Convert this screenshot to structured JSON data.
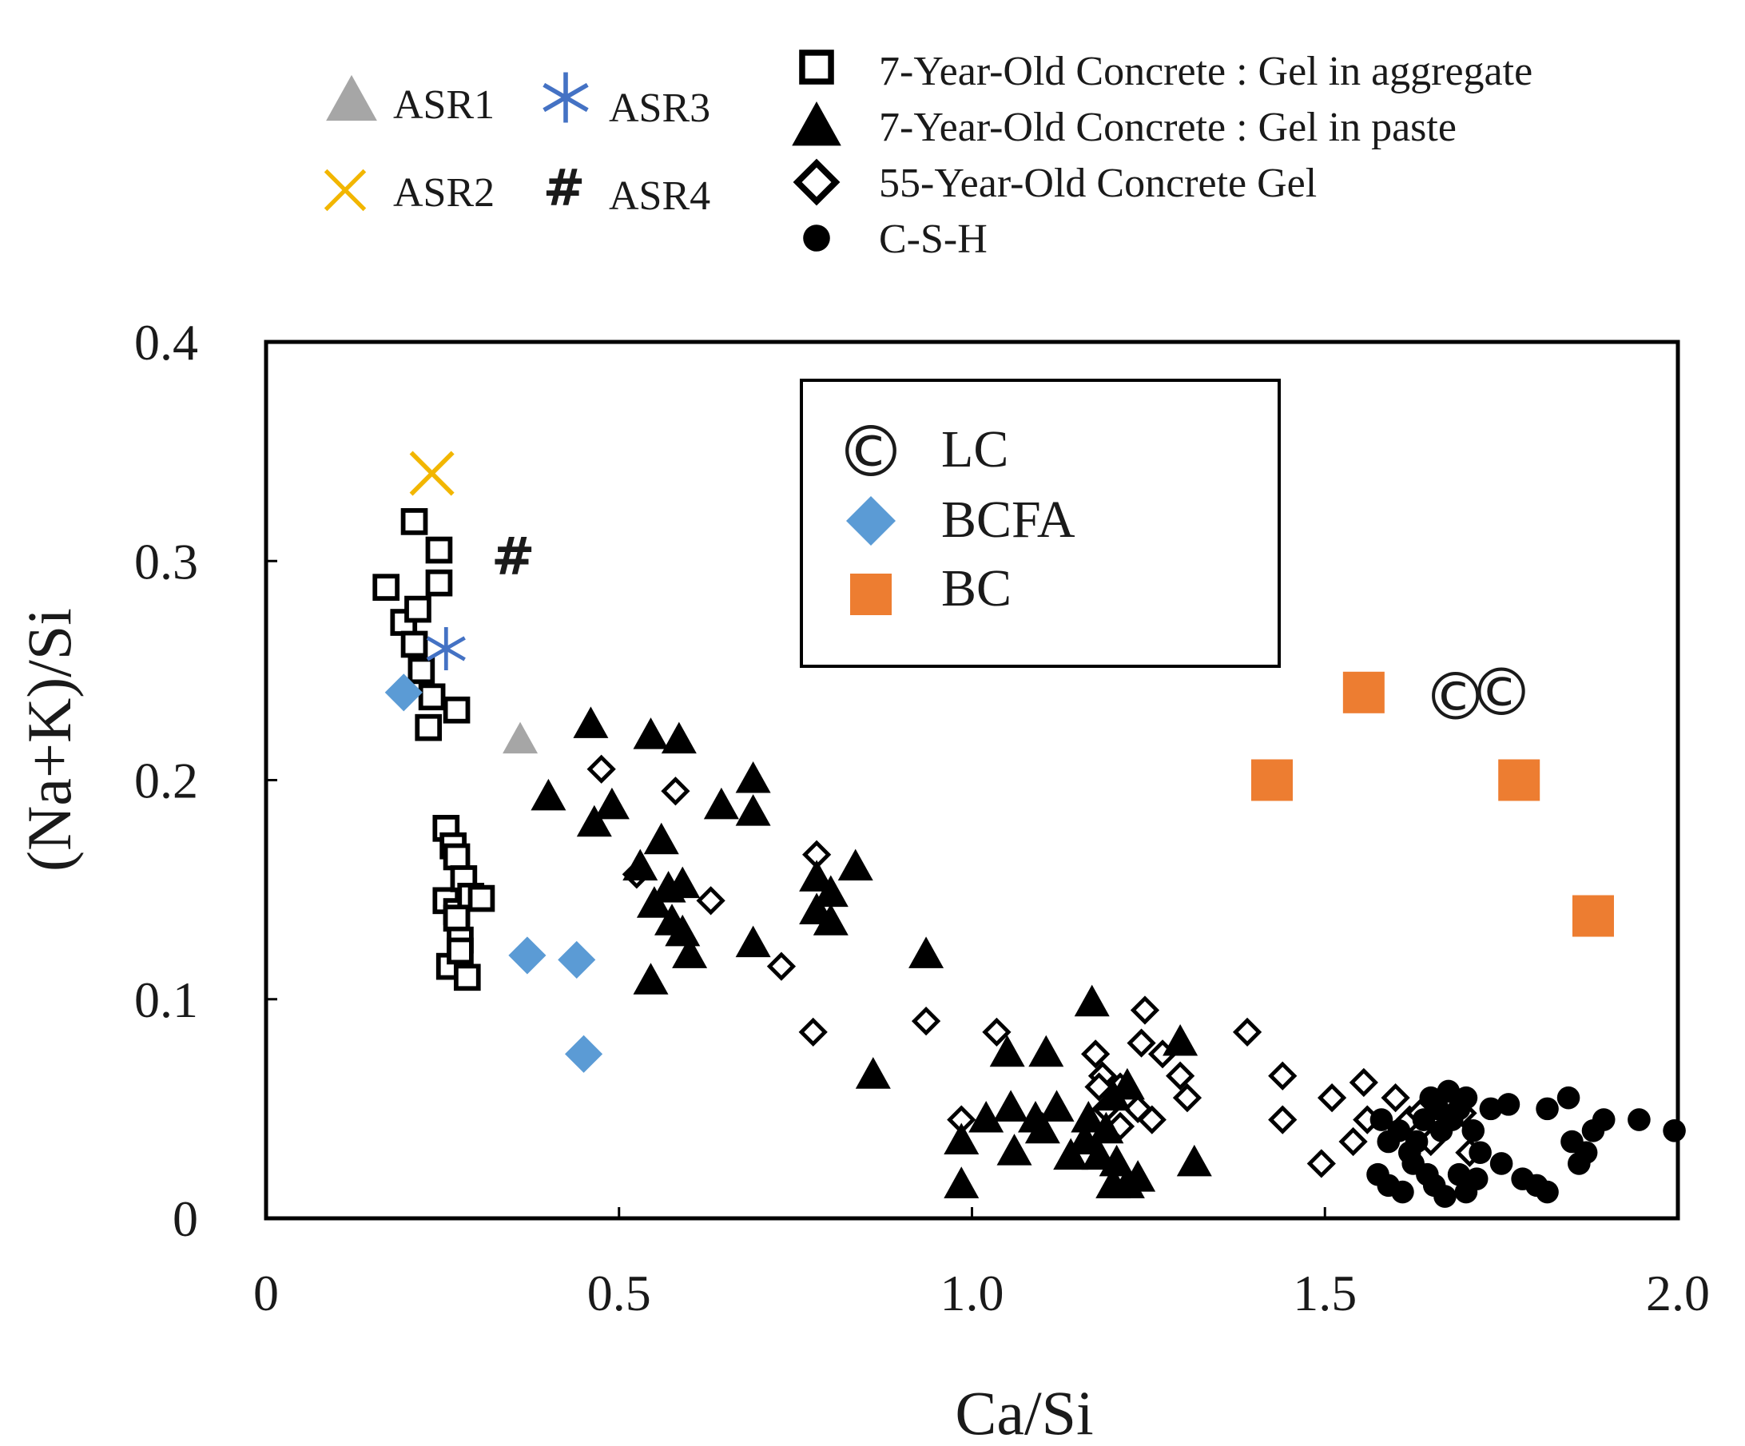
{
  "chart_data": {
    "type": "scatter",
    "xlabel": "Ca/Si",
    "ylabel": "(Na+K)/Si",
    "xlim": [
      0,
      2.0
    ],
    "ylim": [
      0,
      0.4
    ],
    "x_ticks": [
      0,
      0.5,
      1.0,
      1.5,
      2.0
    ],
    "x_tick_labels": [
      "0",
      "0.5",
      "1.0",
      "1.5",
      "2.0"
    ],
    "y_ticks": [
      0,
      0.1,
      0.2,
      0.3,
      0.4
    ],
    "y_tick_labels": [
      "0",
      "0.1",
      "0.2",
      "0.3",
      "0.4"
    ],
    "grid": false,
    "legend_outer_placement": "top",
    "legend_inner_placement": "upper-center",
    "series": [
      {
        "name": "ASR1",
        "legend": "outer",
        "marker": "triangle",
        "color": "#a6a6a6",
        "points": [
          [
            0.36,
            0.218
          ]
        ]
      },
      {
        "name": "ASR2",
        "legend": "outer",
        "marker": "x",
        "color": "#f2b600",
        "points": [
          [
            0.235,
            0.34
          ]
        ]
      },
      {
        "name": "ASR3",
        "legend": "outer",
        "marker": "asterisk",
        "color": "#4472c4",
        "points": [
          [
            0.255,
            0.26
          ]
        ]
      },
      {
        "name": "ASR4",
        "legend": "outer",
        "marker": "hash",
        "color": "#000000",
        "points": [
          [
            0.35,
            0.302
          ]
        ]
      },
      {
        "name": "7-Year-Old Concrete : Gel in aggregate",
        "legend": "outer",
        "marker": "open-square-bold",
        "color": "#000000",
        "points": [
          [
            0.17,
            0.288
          ],
          [
            0.195,
            0.272
          ],
          [
            0.215,
            0.278
          ],
          [
            0.21,
            0.318
          ],
          [
            0.245,
            0.305
          ],
          [
            0.245,
            0.29
          ],
          [
            0.21,
            0.262
          ],
          [
            0.22,
            0.25
          ],
          [
            0.235,
            0.238
          ],
          [
            0.27,
            0.232
          ],
          [
            0.23,
            0.224
          ],
          [
            0.255,
            0.178
          ],
          [
            0.265,
            0.17
          ],
          [
            0.27,
            0.165
          ],
          [
            0.255,
            0.145
          ],
          [
            0.27,
            0.14
          ],
          [
            0.28,
            0.155
          ],
          [
            0.29,
            0.147
          ],
          [
            0.305,
            0.146
          ],
          [
            0.27,
            0.137
          ],
          [
            0.275,
            0.127
          ],
          [
            0.26,
            0.115
          ],
          [
            0.285,
            0.11
          ],
          [
            0.275,
            0.122
          ]
        ]
      },
      {
        "name": "7-Year-Old Concrete : Gel in paste",
        "legend": "outer",
        "marker": "triangle",
        "color": "#000000",
        "points": [
          [
            0.46,
            0.225
          ],
          [
            0.545,
            0.22
          ],
          [
            0.585,
            0.218
          ],
          [
            0.69,
            0.2
          ],
          [
            0.4,
            0.192
          ],
          [
            0.49,
            0.188
          ],
          [
            0.645,
            0.188
          ],
          [
            0.69,
            0.185
          ],
          [
            0.465,
            0.18
          ],
          [
            0.56,
            0.172
          ],
          [
            0.53,
            0.16
          ],
          [
            0.57,
            0.15
          ],
          [
            0.59,
            0.152
          ],
          [
            0.55,
            0.143
          ],
          [
            0.575,
            0.135
          ],
          [
            0.59,
            0.13
          ],
          [
            0.6,
            0.12
          ],
          [
            0.545,
            0.108
          ],
          [
            0.69,
            0.125
          ],
          [
            0.78,
            0.155
          ],
          [
            0.8,
            0.148
          ],
          [
            0.835,
            0.16
          ],
          [
            0.78,
            0.14
          ],
          [
            0.8,
            0.135
          ],
          [
            0.935,
            0.12
          ],
          [
            0.86,
            0.065
          ],
          [
            1.17,
            0.098
          ],
          [
            1.05,
            0.075
          ],
          [
            1.105,
            0.075
          ],
          [
            1.295,
            0.08
          ],
          [
            0.985,
            0.035
          ],
          [
            1.02,
            0.045
          ],
          [
            1.055,
            0.05
          ],
          [
            1.09,
            0.045
          ],
          [
            1.12,
            0.05
          ],
          [
            1.1,
            0.04
          ],
          [
            1.165,
            0.045
          ],
          [
            1.16,
            0.035
          ],
          [
            1.19,
            0.04
          ],
          [
            1.06,
            0.03
          ],
          [
            1.14,
            0.028
          ],
          [
            1.18,
            0.028
          ],
          [
            1.205,
            0.025
          ],
          [
            0.985,
            0.015
          ],
          [
            1.2,
            0.015
          ],
          [
            1.22,
            0.015
          ],
          [
            1.235,
            0.018
          ],
          [
            1.315,
            0.025
          ],
          [
            1.2,
            0.055
          ],
          [
            1.22,
            0.06
          ]
        ]
      },
      {
        "name": "55-Year-Old Concrete Gel",
        "legend": "outer",
        "marker": "open-diamond-bold",
        "color": "#000000",
        "points": [
          [
            0.475,
            0.205
          ],
          [
            0.58,
            0.195
          ],
          [
            0.525,
            0.157
          ],
          [
            0.63,
            0.145
          ],
          [
            0.73,
            0.115
          ],
          [
            0.78,
            0.166
          ],
          [
            0.775,
            0.085
          ],
          [
            0.935,
            0.09
          ],
          [
            1.035,
            0.085
          ],
          [
            1.175,
            0.075
          ],
          [
            1.185,
            0.065
          ],
          [
            1.21,
            0.06
          ],
          [
            1.24,
            0.08
          ],
          [
            1.245,
            0.095
          ],
          [
            1.27,
            0.075
          ],
          [
            1.295,
            0.065
          ],
          [
            1.305,
            0.055
          ],
          [
            1.39,
            0.085
          ],
          [
            1.44,
            0.065
          ],
          [
            1.44,
            0.045
          ],
          [
            1.495,
            0.025
          ],
          [
            1.51,
            0.055
          ],
          [
            1.555,
            0.062
          ],
          [
            1.56,
            0.045
          ],
          [
            1.54,
            0.035
          ],
          [
            1.6,
            0.055
          ],
          [
            1.62,
            0.045
          ],
          [
            1.635,
            0.048
          ],
          [
            1.65,
            0.035
          ],
          [
            1.695,
            0.048
          ],
          [
            1.705,
            0.03
          ],
          [
            1.19,
            0.05
          ],
          [
            1.21,
            0.042
          ],
          [
            1.235,
            0.05
          ],
          [
            1.255,
            0.045
          ],
          [
            1.18,
            0.06
          ],
          [
            0.985,
            0.045
          ]
        ]
      },
      {
        "name": "C-S-H",
        "legend": "outer",
        "marker": "circle",
        "color": "#000000",
        "points": [
          [
            1.58,
            0.045
          ],
          [
            1.59,
            0.035
          ],
          [
            1.605,
            0.04
          ],
          [
            1.62,
            0.03
          ],
          [
            1.625,
            0.025
          ],
          [
            1.64,
            0.045
          ],
          [
            1.65,
            0.055
          ],
          [
            1.66,
            0.05
          ],
          [
            1.665,
            0.04
          ],
          [
            1.675,
            0.058
          ],
          [
            1.68,
            0.045
          ],
          [
            1.69,
            0.05
          ],
          [
            1.7,
            0.055
          ],
          [
            1.71,
            0.04
          ],
          [
            1.72,
            0.03
          ],
          [
            1.735,
            0.05
          ],
          [
            1.76,
            0.052
          ],
          [
            1.575,
            0.02
          ],
          [
            1.59,
            0.015
          ],
          [
            1.61,
            0.012
          ],
          [
            1.645,
            0.02
          ],
          [
            1.655,
            0.015
          ],
          [
            1.67,
            0.01
          ],
          [
            1.69,
            0.02
          ],
          [
            1.7,
            0.012
          ],
          [
            1.715,
            0.018
          ],
          [
            1.75,
            0.025
          ],
          [
            1.78,
            0.018
          ],
          [
            1.8,
            0.015
          ],
          [
            1.815,
            0.012
          ],
          [
            1.815,
            0.05
          ],
          [
            1.845,
            0.055
          ],
          [
            1.85,
            0.035
          ],
          [
            1.87,
            0.03
          ],
          [
            1.88,
            0.04
          ],
          [
            1.895,
            0.045
          ],
          [
            1.945,
            0.045
          ],
          [
            1.995,
            0.04
          ],
          [
            1.86,
            0.025
          ],
          [
            1.63,
            0.035
          ]
        ]
      },
      {
        "name": "LC",
        "legend": "inner",
        "marker": "copyright",
        "color": "#000000",
        "points": [
          [
            1.685,
            0.238
          ],
          [
            1.75,
            0.24
          ]
        ]
      },
      {
        "name": "BCFA",
        "legend": "inner",
        "marker": "diamond",
        "color": "#5b9bd5",
        "points": [
          [
            0.195,
            0.24
          ],
          [
            0.37,
            0.12
          ],
          [
            0.44,
            0.118
          ],
          [
            0.45,
            0.075
          ]
        ]
      },
      {
        "name": "BC",
        "legend": "inner",
        "marker": "square",
        "color": "#ed7d31",
        "points": [
          [
            1.555,
            0.24
          ],
          [
            1.425,
            0.2
          ],
          [
            1.775,
            0.2
          ],
          [
            1.88,
            0.138
          ]
        ]
      }
    ]
  }
}
